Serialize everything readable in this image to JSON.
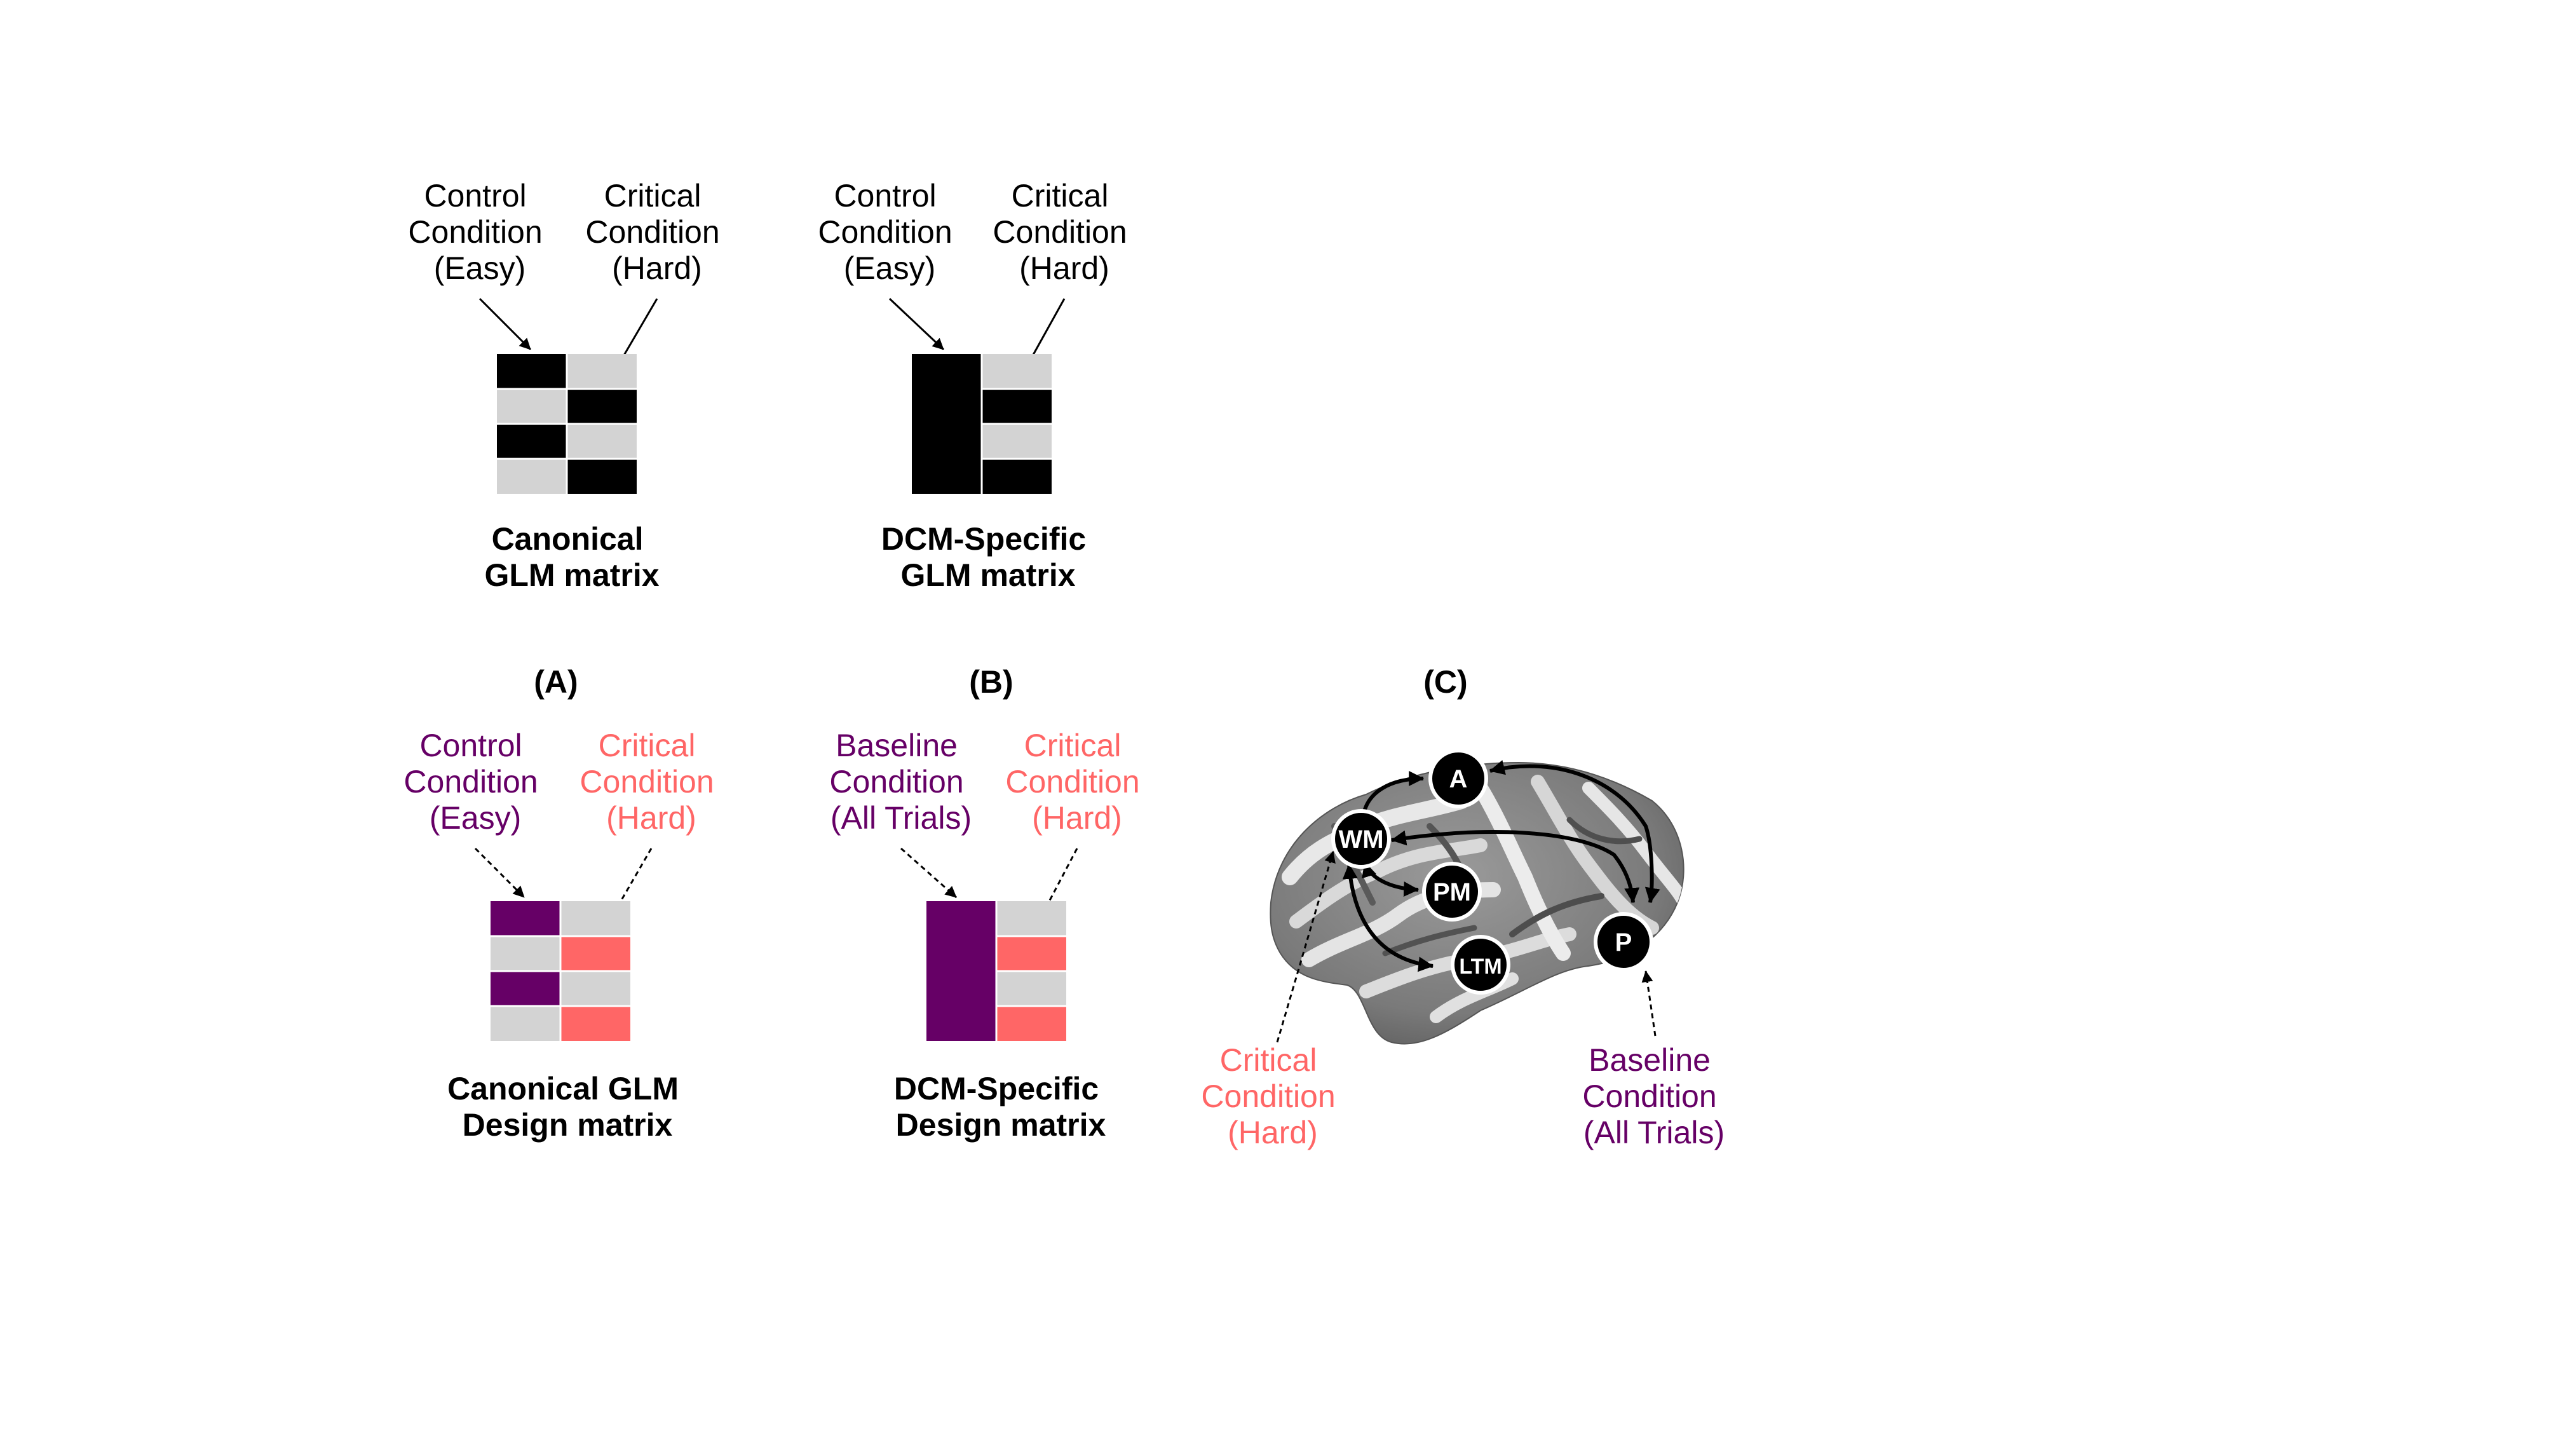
{
  "colors": {
    "black": "#000000",
    "gray": "#d3d3d3",
    "purple": "#660066",
    "salmon": "#ff6666",
    "white": "#ffffff"
  },
  "top_left": {
    "left_label": [
      "Control",
      "Condition",
      "(Easy)"
    ],
    "right_label": [
      "Critical",
      "Condition",
      "(Hard)"
    ],
    "title": [
      "Canonical",
      "GLM matrix"
    ]
  },
  "top_middle": {
    "left_label": [
      "Control",
      "Condition",
      "(Easy)"
    ],
    "right_label": [
      "Critical",
      "Condition",
      "(Hard)"
    ],
    "title": [
      "DCM-Specific",
      "GLM matrix"
    ]
  },
  "panel_labels": {
    "a": "(A)",
    "b": "(B)",
    "c": "(C)"
  },
  "panel_a": {
    "left_label": [
      "Control",
      "Condition",
      "(Easy)"
    ],
    "right_label": [
      "Critical",
      "Condition",
      "(Hard)"
    ],
    "title": [
      "Canonical GLM",
      "Design matrix"
    ]
  },
  "panel_b": {
    "left_label": [
      "Baseline",
      "Condition",
      "(All Trials)"
    ],
    "right_label": [
      "Critical",
      "Condition",
      "(Hard)"
    ],
    "title": [
      "DCM-Specific",
      "Design matrix"
    ]
  },
  "panel_c": {
    "nodes": {
      "a": "A",
      "wm": "WM",
      "pm": "PM",
      "ltm": "LTM",
      "p": "P"
    },
    "critical_label": [
      "Critical",
      "Condition",
      "(Hard)"
    ],
    "baseline_label": [
      "Baseline",
      "Condition",
      "(All Trials)"
    ]
  }
}
